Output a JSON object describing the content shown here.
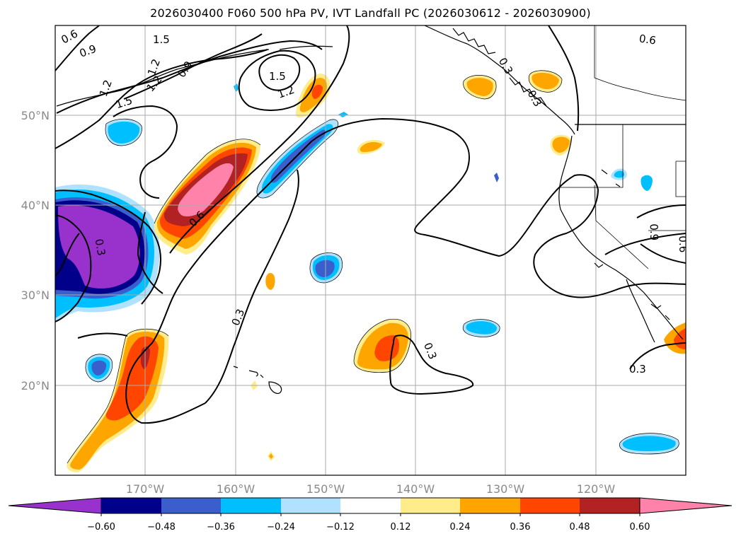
{
  "title": "2026030400 F060 500 hPa PV, IVT Landfall PC (2026030612 - 2026030900)",
  "map": {
    "lon_range": [
      -180,
      -110
    ],
    "lat_range": [
      10,
      60
    ],
    "lon_ticks": [
      {
        "lon": -170,
        "label": "170°W"
      },
      {
        "lon": -160,
        "label": "160°W"
      },
      {
        "lon": -150,
        "label": "150°W"
      },
      {
        "lon": -140,
        "label": "140°W"
      },
      {
        "lon": -130,
        "label": "130°W"
      },
      {
        "lon": -120,
        "label": "120°W"
      }
    ],
    "lat_ticks": [
      {
        "lat": 50,
        "label": "50°N"
      },
      {
        "lat": 40,
        "label": "40°N"
      },
      {
        "lat": 30,
        "label": "30°N"
      },
      {
        "lat": 20,
        "label": "20°N"
      }
    ],
    "contour_labels": [
      "0.6",
      "0.9",
      "1.2",
      "1.5",
      "1.5",
      "1.2",
      "0.9",
      "1.2",
      "1.5",
      "1.2",
      "0.3",
      "0.6",
      "0.6",
      "0.3",
      "0.3",
      "0.3",
      "0.3",
      "0.9",
      "0.6",
      "0.3"
    ]
  },
  "colorbar": {
    "colors": [
      "#9932cc",
      "#00008b",
      "#3a5fcd",
      "#00bfff",
      "#b0e2ff",
      "#ffffff",
      "#ffec8b",
      "#ffa500",
      "#ff4500",
      "#b22222",
      "#ff82ab"
    ],
    "ticks": [
      "−0.60",
      "−0.48",
      "−0.36",
      "−0.24",
      "−0.12",
      "0.12",
      "0.24",
      "0.36",
      "0.48",
      "0.60"
    ]
  },
  "colors": {
    "purple": "#9932cc",
    "navy": "#00008b",
    "blue": "#3a5fcd",
    "sky": "#00bfff",
    "lightblue": "#b0e2ff",
    "yellow": "#ffec8b",
    "orange": "#ffa500",
    "redorange": "#ff4500",
    "firebrick": "#b22222",
    "pink": "#ff82ab"
  }
}
